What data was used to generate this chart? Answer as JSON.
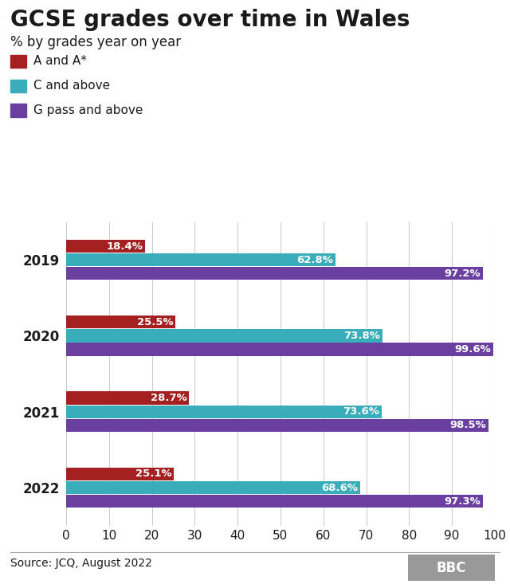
{
  "title": "GCSE grades over time in Wales",
  "subtitle": "% by grades year on year",
  "years": [
    "2019",
    "2020",
    "2021",
    "2022"
  ],
  "series": [
    {
      "label": "A and A*",
      "color": "#a52020",
      "values": [
        18.4,
        25.5,
        28.7,
        25.1
      ]
    },
    {
      "label": "C and above",
      "color": "#3aadba",
      "values": [
        62.8,
        73.8,
        73.6,
        68.6
      ]
    },
    {
      "label": "G pass and above",
      "color": "#6b3fa0",
      "values": [
        97.2,
        99.6,
        98.5,
        97.3
      ]
    }
  ],
  "xlim": [
    0,
    100
  ],
  "xticks": [
    0,
    10,
    20,
    30,
    40,
    50,
    60,
    70,
    80,
    90,
    100
  ],
  "bar_height": 0.18,
  "source": "Source: JCQ, August 2022",
  "background_color": "#ffffff",
  "text_color": "#1a1a1a",
  "grid_color": "#cccccc",
  "tick_fontsize": 11,
  "title_fontsize": 20,
  "subtitle_fontsize": 12,
  "year_fontsize": 12,
  "legend_fontsize": 11,
  "source_fontsize": 10,
  "bar_label_fontsize": 9.5,
  "bar_label_color": "#ffffff"
}
